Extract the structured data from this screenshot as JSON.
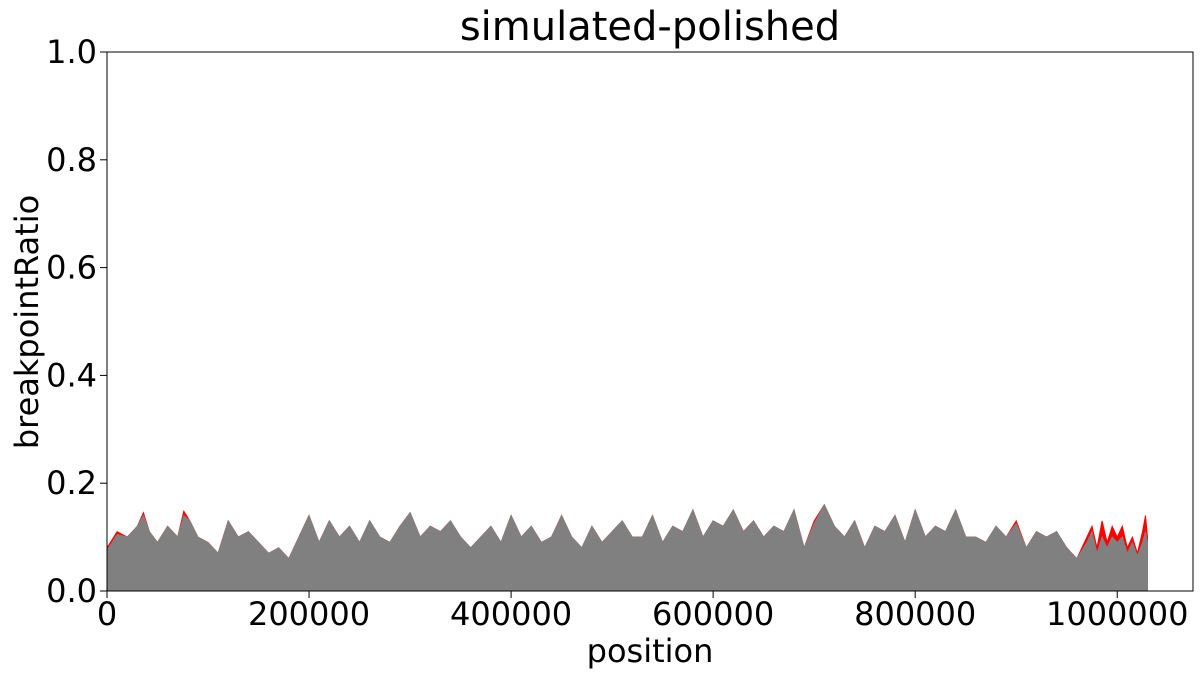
{
  "chart_data": {
    "type": "area",
    "title": "simulated-polished",
    "xlabel": "position",
    "ylabel": "breakpointRatio",
    "xlim": [
      0,
      1075000
    ],
    "ylim": [
      0.0,
      1.0
    ],
    "x_ticks": [
      0,
      200000,
      400000,
      600000,
      800000,
      1000000
    ],
    "x_tick_labels": [
      "0",
      "200000",
      "400000",
      "600000",
      "800000",
      "1000000"
    ],
    "y_ticks": [
      0.0,
      0.2,
      0.4,
      0.6,
      0.8,
      1.0
    ],
    "y_tick_labels": [
      "0.0",
      "0.2",
      "0.4",
      "0.6",
      "0.8",
      "1.0"
    ],
    "grid": false,
    "legend": "none",
    "series": [
      {
        "color": "#ff0000",
        "x": [
          0,
          10000,
          20000,
          30000,
          36000,
          42000,
          50000,
          60000,
          70000,
          76000,
          82000,
          90000,
          100000,
          110000,
          120000,
          130000,
          140000,
          150000,
          160000,
          170000,
          180000,
          190000,
          200000,
          210000,
          220000,
          230000,
          240000,
          250000,
          260000,
          270000,
          280000,
          290000,
          300000,
          310000,
          320000,
          330000,
          340000,
          350000,
          360000,
          370000,
          380000,
          390000,
          400000,
          410000,
          420000,
          430000,
          440000,
          450000,
          460000,
          470000,
          480000,
          490000,
          500000,
          510000,
          520000,
          530000,
          540000,
          550000,
          560000,
          570000,
          580000,
          590000,
          600000,
          610000,
          620000,
          630000,
          640000,
          650000,
          660000,
          670000,
          680000,
          690000,
          700000,
          710000,
          720000,
          730000,
          740000,
          750000,
          760000,
          770000,
          780000,
          790000,
          800000,
          810000,
          820000,
          830000,
          840000,
          850000,
          860000,
          870000,
          880000,
          890000,
          900000,
          910000,
          920000,
          930000,
          940000,
          950000,
          960000,
          970000,
          975000,
          980000,
          985000,
          990000,
          995000,
          1000000,
          1005000,
          1010000,
          1015000,
          1020000,
          1025000,
          1028000,
          1030000
        ],
        "values": [
          0.08,
          0.11,
          0.1,
          0.12,
          0.145,
          0.11,
          0.09,
          0.12,
          0.1,
          0.148,
          0.13,
          0.1,
          0.09,
          0.07,
          0.13,
          0.1,
          0.11,
          0.09,
          0.07,
          0.08,
          0.06,
          0.1,
          0.14,
          0.09,
          0.13,
          0.1,
          0.12,
          0.09,
          0.13,
          0.1,
          0.09,
          0.12,
          0.145,
          0.1,
          0.12,
          0.11,
          0.13,
          0.1,
          0.08,
          0.1,
          0.12,
          0.09,
          0.14,
          0.1,
          0.12,
          0.09,
          0.1,
          0.14,
          0.1,
          0.08,
          0.12,
          0.09,
          0.11,
          0.13,
          0.1,
          0.1,
          0.14,
          0.09,
          0.12,
          0.11,
          0.15,
          0.1,
          0.13,
          0.12,
          0.15,
          0.11,
          0.13,
          0.1,
          0.12,
          0.11,
          0.15,
          0.08,
          0.13,
          0.16,
          0.12,
          0.1,
          0.13,
          0.08,
          0.12,
          0.11,
          0.14,
          0.09,
          0.15,
          0.1,
          0.12,
          0.11,
          0.15,
          0.1,
          0.1,
          0.09,
          0.12,
          0.1,
          0.13,
          0.08,
          0.11,
          0.1,
          0.11,
          0.08,
          0.06,
          0.1,
          0.12,
          0.08,
          0.13,
          0.09,
          0.12,
          0.1,
          0.12,
          0.08,
          0.1,
          0.07,
          0.11,
          0.14,
          0.1
        ]
      },
      {
        "color": "#808080",
        "x": [
          0,
          10000,
          20000,
          30000,
          36000,
          42000,
          50000,
          60000,
          70000,
          76000,
          82000,
          90000,
          100000,
          110000,
          120000,
          130000,
          140000,
          150000,
          160000,
          170000,
          180000,
          190000,
          200000,
          210000,
          220000,
          230000,
          240000,
          250000,
          260000,
          270000,
          280000,
          290000,
          300000,
          310000,
          320000,
          330000,
          340000,
          350000,
          360000,
          370000,
          380000,
          390000,
          400000,
          410000,
          420000,
          430000,
          440000,
          450000,
          460000,
          470000,
          480000,
          490000,
          500000,
          510000,
          520000,
          530000,
          540000,
          550000,
          560000,
          570000,
          580000,
          590000,
          600000,
          610000,
          620000,
          630000,
          640000,
          650000,
          660000,
          670000,
          680000,
          690000,
          700000,
          710000,
          720000,
          730000,
          740000,
          750000,
          760000,
          770000,
          780000,
          790000,
          800000,
          810000,
          820000,
          830000,
          840000,
          850000,
          860000,
          870000,
          880000,
          890000,
          900000,
          910000,
          920000,
          930000,
          940000,
          950000,
          960000,
          970000,
          975000,
          980000,
          985000,
          990000,
          995000,
          1000000,
          1005000,
          1010000,
          1015000,
          1020000,
          1025000,
          1028000,
          1030000
        ],
        "values": [
          0.075,
          0.105,
          0.1,
          0.12,
          0.14,
          0.11,
          0.09,
          0.12,
          0.1,
          0.14,
          0.13,
          0.1,
          0.09,
          0.07,
          0.13,
          0.1,
          0.11,
          0.09,
          0.07,
          0.08,
          0.06,
          0.1,
          0.14,
          0.09,
          0.13,
          0.1,
          0.12,
          0.09,
          0.13,
          0.1,
          0.09,
          0.12,
          0.145,
          0.1,
          0.12,
          0.11,
          0.13,
          0.1,
          0.08,
          0.1,
          0.12,
          0.09,
          0.14,
          0.1,
          0.12,
          0.09,
          0.1,
          0.14,
          0.1,
          0.08,
          0.12,
          0.09,
          0.11,
          0.13,
          0.1,
          0.1,
          0.14,
          0.09,
          0.12,
          0.11,
          0.15,
          0.1,
          0.13,
          0.12,
          0.15,
          0.11,
          0.13,
          0.1,
          0.12,
          0.11,
          0.15,
          0.08,
          0.125,
          0.16,
          0.12,
          0.1,
          0.13,
          0.08,
          0.12,
          0.11,
          0.14,
          0.09,
          0.15,
          0.1,
          0.12,
          0.11,
          0.15,
          0.1,
          0.1,
          0.09,
          0.12,
          0.1,
          0.125,
          0.08,
          0.11,
          0.1,
          0.11,
          0.08,
          0.06,
          0.09,
          0.11,
          0.07,
          0.1,
          0.08,
          0.1,
          0.09,
          0.1,
          0.07,
          0.09,
          0.065,
          0.09,
          0.11,
          0.09
        ]
      }
    ]
  }
}
